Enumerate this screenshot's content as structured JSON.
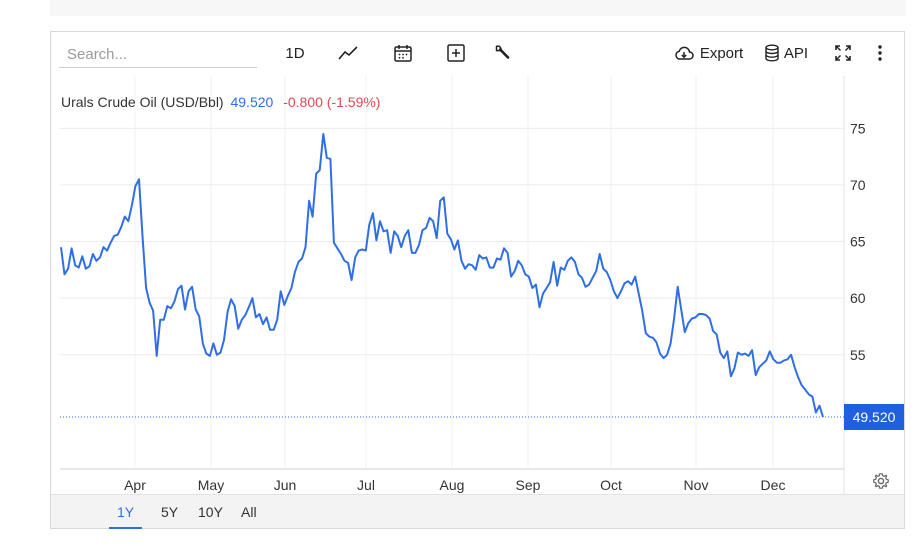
{
  "toolbar": {
    "search_placeholder": "Search...",
    "interval_label": "1D",
    "export_label": "Export",
    "api_label": "API",
    "icons": [
      "line-chart-icon",
      "calendar-icon",
      "add-indicator-icon",
      "wrench-icon",
      "cloud-download-icon",
      "database-icon",
      "fullscreen-icon",
      "more-vertical-icon"
    ]
  },
  "legend": {
    "name": "Urals Crude Oil (USD/Bbl)",
    "last": "49.520",
    "change": "-0.800 (-1.59%)"
  },
  "colors": {
    "line": "#2f6fe6",
    "badge": "#1f5fe0",
    "negative": "#e5484d",
    "grid": "#ebebeb"
  },
  "ranges": [
    {
      "label": "1Y",
      "active": true
    },
    {
      "label": "5Y",
      "active": false
    },
    {
      "label": "10Y",
      "active": false
    },
    {
      "label": "All",
      "active": false
    }
  ],
  "chart_data": {
    "type": "line",
    "title": "Urals Crude Oil (USD/Bbl)",
    "xlabel": "",
    "ylabel": "",
    "ylim": [
      45,
      80
    ],
    "yticks": [
      55,
      60,
      65,
      70,
      75
    ],
    "x_ticks": [
      "Apr",
      "May",
      "Jun",
      "Jul",
      "Aug",
      "Sep",
      "Oct",
      "Nov",
      "Dec"
    ],
    "grid": true,
    "last_value_label": "49.520",
    "series": [
      {
        "values": [
          64.5,
          62.1,
          62.6,
          64.4,
          62.9,
          62.7,
          63.7,
          62.6,
          62.8,
          63.9,
          63.3,
          63.6,
          64.5,
          64.2,
          64.9,
          65.5,
          65.6,
          66.3,
          67.2,
          66.8,
          68.2,
          69.9,
          70.5,
          65.5,
          60.9,
          59.6,
          58.9,
          54.9,
          58.1,
          58.1,
          59.3,
          59.1,
          59.7,
          60.8,
          61.1,
          59.0,
          60.6,
          61.0,
          59.0,
          58.4,
          56.0,
          55.1,
          54.9,
          56.0,
          55.0,
          55.2,
          56.3,
          58.8,
          59.9,
          59.3,
          57.3,
          58.1,
          58.5,
          59.2,
          60.0,
          58.3,
          58.6,
          57.7,
          58.3,
          57.2,
          57.2,
          58.1,
          60.6,
          59.4,
          60.2,
          60.9,
          62.3,
          63.2,
          63.5,
          64.5,
          68.6,
          67.2,
          71.0,
          71.3,
          74.5,
          72.4,
          72.3,
          64.9,
          64.4,
          63.9,
          63.3,
          63.1,
          61.6,
          63.6,
          64.2,
          64.3,
          64.2,
          66.5,
          67.5,
          65.1,
          66.8,
          65.9,
          66.0,
          64.0,
          65.9,
          65.5,
          64.5,
          65.5,
          66.0,
          64.0,
          64.0,
          64.7,
          66.0,
          66.2,
          67.1,
          66.8,
          65.3,
          68.6,
          68.9,
          65.7,
          65.2,
          64.3,
          65.1,
          63.3,
          62.6,
          63.0,
          62.9,
          62.5,
          63.8,
          63.5,
          63.6,
          62.7,
          62.7,
          63.5,
          63.4,
          64.4,
          64.0,
          61.9,
          62.4,
          63.3,
          62.9,
          62.1,
          61.9,
          60.9,
          61.2,
          59.2,
          60.4,
          60.9,
          61.4,
          63.2,
          61.1,
          62.7,
          62.5,
          63.3,
          63.6,
          63.2,
          62.1,
          61.8,
          61.0,
          61.2,
          61.8,
          62.4,
          63.9,
          62.6,
          62.3,
          61.6,
          60.6,
          60.0,
          60.6,
          61.3,
          61.5,
          61.2,
          61.9,
          60.4,
          58.9,
          56.9,
          56.6,
          56.5,
          56.1,
          55.1,
          54.7,
          55.0,
          56.0,
          58.2,
          61.0,
          59.0,
          57.0,
          57.8,
          58.2,
          58.3,
          58.6,
          58.6,
          58.5,
          58.2,
          57.1,
          56.8,
          55.2,
          54.7,
          55.3,
          53.1,
          53.8,
          55.2,
          55.0,
          55.1,
          54.9,
          55.4,
          53.2,
          53.9,
          54.2,
          54.5,
          55.3,
          54.6,
          54.3,
          54.3,
          54.5,
          54.6,
          55.0,
          53.9,
          53.0,
          52.3,
          51.9,
          51.5,
          51.3,
          49.9,
          50.5,
          49.5
        ]
      }
    ]
  }
}
